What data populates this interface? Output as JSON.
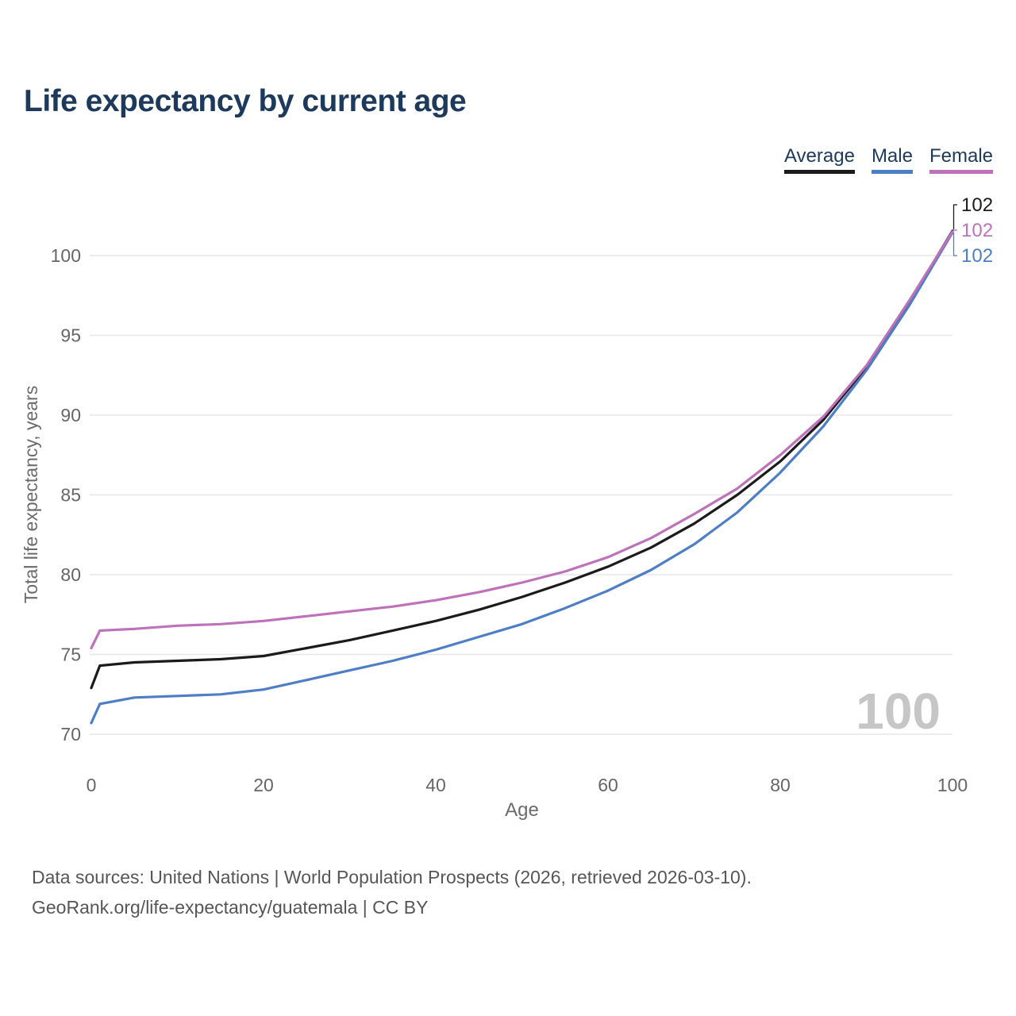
{
  "header": {
    "title": "Life expectancy by current age"
  },
  "footer": {
    "line1": "Data sources: United Nations | World Population Prospects (2026, retrieved 2026-03-10).",
    "line2": "GeoRank.org/life-expectancy/guatemala | CC BY"
  },
  "colors": {
    "title_text": "#1d3a5c",
    "grid": "#e7e7e7",
    "tick_text": "#666666",
    "axis_title_text": "#6b6b6b",
    "watermark_text": "#c6c6c6",
    "footer_text": "#565656"
  },
  "chart_data": {
    "type": "line",
    "title": "Life expectancy by current age",
    "xlabel": "Age",
    "ylabel": "Total life expectancy, years",
    "xlim": [
      0,
      100
    ],
    "ylim": [
      70,
      102
    ],
    "x_ticks": [
      0,
      20,
      40,
      60,
      80,
      100
    ],
    "y_ticks": [
      70,
      75,
      80,
      85,
      90,
      95,
      100
    ],
    "grid": "horizontal",
    "legend_position": "top-right",
    "watermark": "100",
    "ages": [
      0,
      1,
      5,
      10,
      15,
      20,
      25,
      30,
      35,
      40,
      45,
      50,
      55,
      60,
      65,
      70,
      75,
      80,
      85,
      90,
      95,
      100
    ],
    "series": [
      {
        "name": "Average",
        "color": "#1b1b1b",
        "end_label": "102",
        "values": [
          72.9,
          74.3,
          74.5,
          74.6,
          74.7,
          74.9,
          75.4,
          75.9,
          76.5,
          77.1,
          77.8,
          78.6,
          79.5,
          80.5,
          81.7,
          83.2,
          85.0,
          87.1,
          89.7,
          93.0,
          97.1,
          101.55
        ]
      },
      {
        "name": "Male",
        "color": "#4d7ec6",
        "end_label": "102",
        "values": [
          70.7,
          71.9,
          72.3,
          72.4,
          72.5,
          72.8,
          73.4,
          74.0,
          74.6,
          75.3,
          76.1,
          76.9,
          77.9,
          79.0,
          80.3,
          81.9,
          83.9,
          86.4,
          89.3,
          92.8,
          96.9,
          101.45
        ]
      },
      {
        "name": "Female",
        "color": "#bd72ba",
        "end_label": "102",
        "values": [
          75.4,
          76.5,
          76.6,
          76.8,
          76.9,
          77.1,
          77.4,
          77.7,
          78.0,
          78.4,
          78.9,
          79.5,
          80.2,
          81.1,
          82.3,
          83.8,
          85.4,
          87.5,
          89.9,
          93.1,
          97.2,
          101.5
        ]
      }
    ]
  }
}
